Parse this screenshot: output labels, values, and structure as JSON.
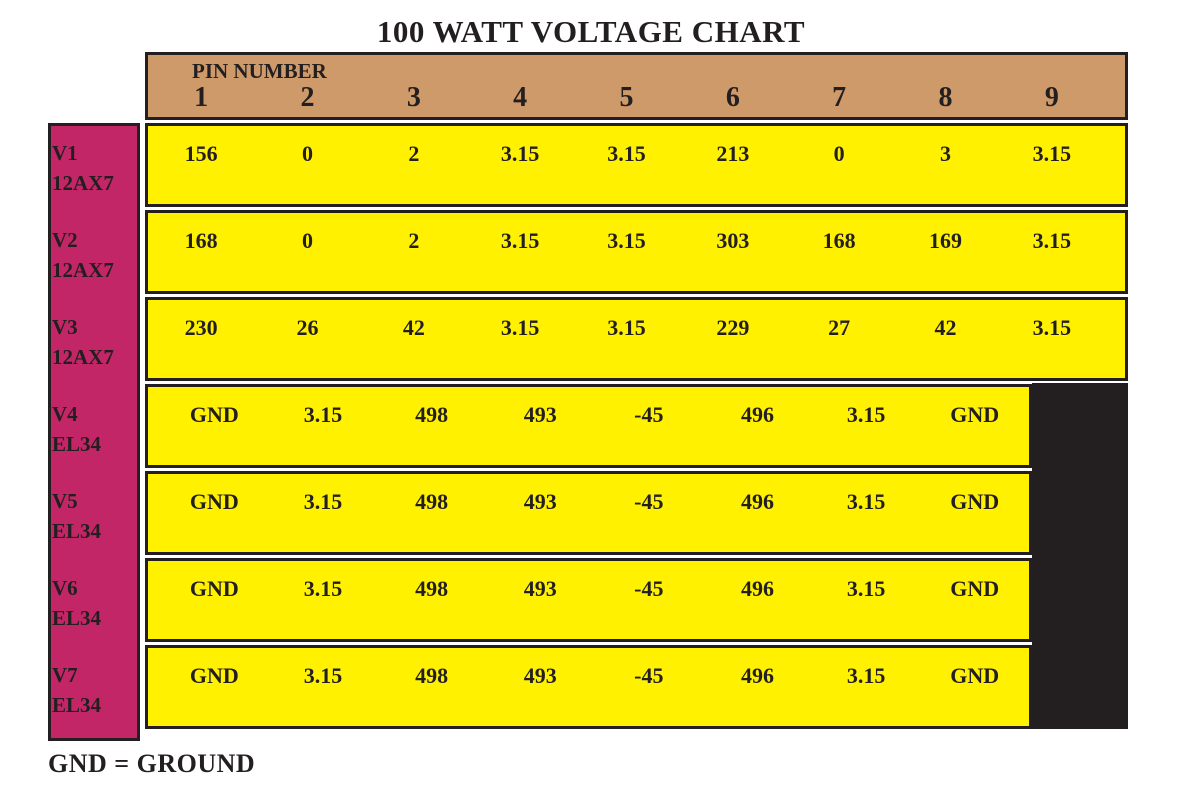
{
  "title": "100 WATT VOLTAGE CHART",
  "footnote": "GND = GROUND",
  "colors": {
    "ink": "#231f20",
    "header_bg": "#cf9a6a",
    "cell_bg": "#fff100",
    "tube_col_bg": "#c22667",
    "blank_block": "#231f20",
    "page_bg": "#ffffff"
  },
  "chart_data": {
    "type": "table",
    "title": "100 WATT VOLTAGE CHART",
    "header_label": "PIN NUMBER",
    "pin_columns": [
      "1",
      "2",
      "3",
      "4",
      "5",
      "6",
      "7",
      "8",
      "9"
    ],
    "rows": [
      {
        "tube": "V1",
        "model": "12AX7",
        "values": [
          "156",
          "0",
          "2",
          "3.15",
          "3.15",
          "213",
          "0",
          "3",
          "3.15"
        ]
      },
      {
        "tube": "V2",
        "model": "12AX7",
        "values": [
          "168",
          "0",
          "2",
          "3.15",
          "3.15",
          "303",
          "168",
          "169",
          "3.15"
        ]
      },
      {
        "tube": "V3",
        "model": "12AX7",
        "values": [
          "230",
          "26",
          "42",
          "3.15",
          "3.15",
          "229",
          "27",
          "42",
          "3.15"
        ]
      },
      {
        "tube": "V4",
        "model": "EL34",
        "values": [
          "GND",
          "3.15",
          "498",
          "493",
          "-45",
          "496",
          "3.15",
          "GND"
        ]
      },
      {
        "tube": "V5",
        "model": "EL34",
        "values": [
          "GND",
          "3.15",
          "498",
          "493",
          "-45",
          "496",
          "3.15",
          "GND"
        ]
      },
      {
        "tube": "V6",
        "model": "EL34",
        "values": [
          "GND",
          "3.15",
          "498",
          "493",
          "-45",
          "496",
          "3.15",
          "GND"
        ]
      },
      {
        "tube": "V7",
        "model": "EL34",
        "values": [
          "GND",
          "3.15",
          "498",
          "493",
          "-45",
          "496",
          "3.15",
          "GND"
        ]
      }
    ],
    "legend": "GND = GROUND",
    "notes": "Pin 9 column has no values for EL34 tubes (V4-V7); that region is blacked out."
  }
}
